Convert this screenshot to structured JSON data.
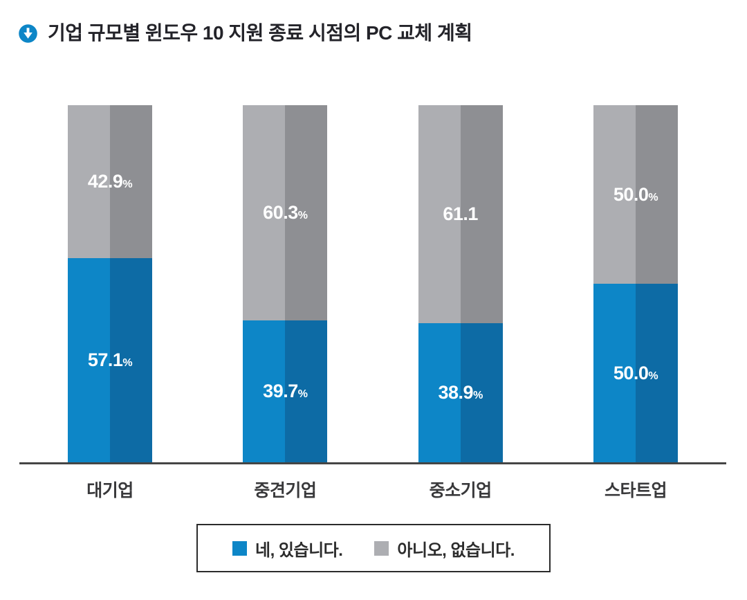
{
  "accent_color": "#0d86c7",
  "chart_data": {
    "type": "bar",
    "stacked": true,
    "orientation": "vertical",
    "title": "기업 규모별 윈도우 10 지원 종료 시점의 PC 교체 계획",
    "categories": [
      "대기업",
      "중견기업",
      "중소기업",
      "스타트업"
    ],
    "series": [
      {
        "name": "네, 있습니다.",
        "values": [
          57.1,
          39.7,
          38.9,
          50.0
        ],
        "labels": [
          "57.1%",
          "39.7%",
          "38.9%",
          "50.0%"
        ],
        "color_left": "#0d86c7",
        "color_right": "#0d6ba5"
      },
      {
        "name": "아니오, 없습니다.",
        "values": [
          42.9,
          60.3,
          61.1,
          50.0
        ],
        "labels": [
          "42.9%",
          "60.3%",
          "61.1",
          "50.0%"
        ],
        "color_left": "#adaeb2",
        "color_right": "#8e8f93"
      }
    ],
    "ylim": [
      0,
      100
    ],
    "grid": false,
    "legend_position": "bottom",
    "value_label_color": "#ffffff",
    "axis_line_color": "#454545"
  }
}
